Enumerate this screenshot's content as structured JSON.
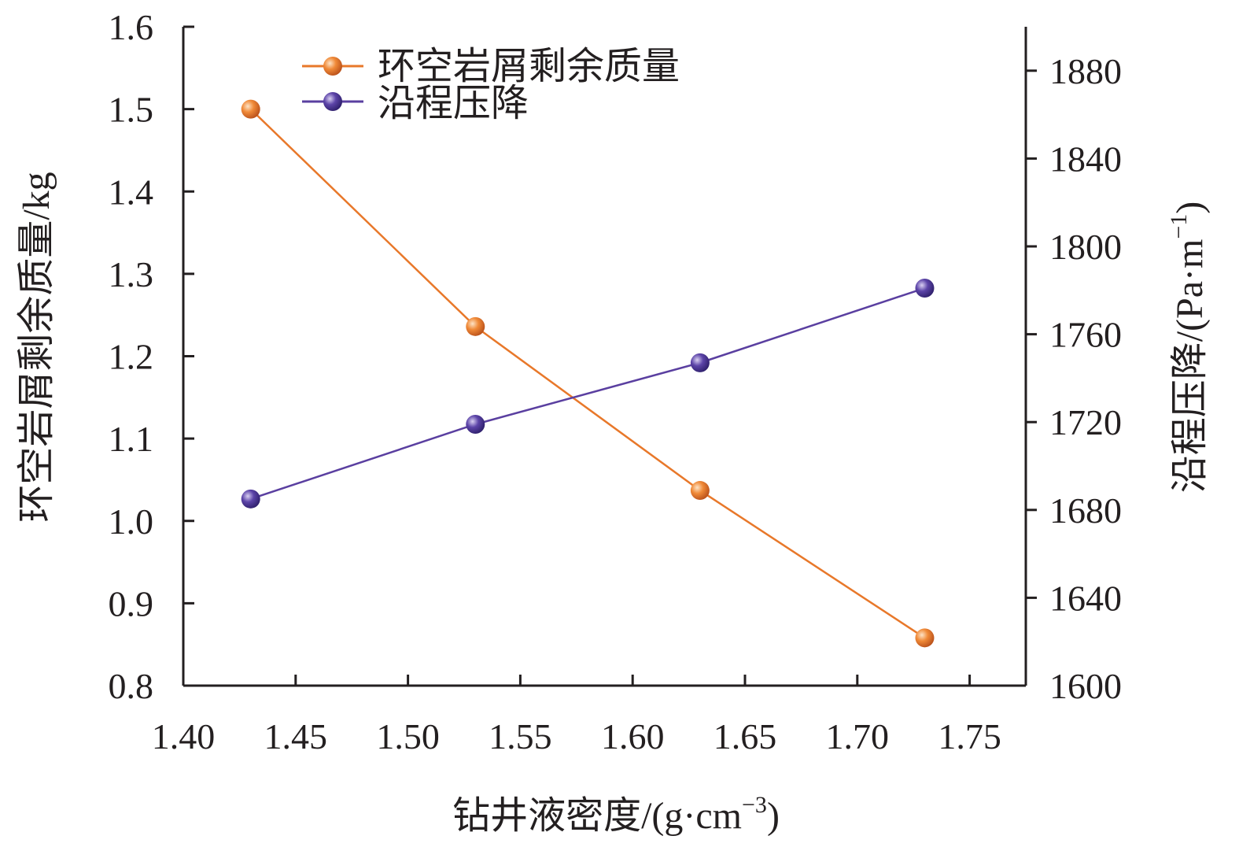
{
  "chart_data": {
    "type": "line",
    "xlabel": "钻井液密度/(g·cm",
    "xlabel_sup": "−3",
    "xlabel_end": ")",
    "ylabel_left": "环空岩屑剩余质量/kg",
    "ylabel_right": "沿程压降/(Pa·m",
    "ylabel_right_sup": "−1",
    "ylabel_right_end": ")",
    "xlim": [
      1.4,
      1.775
    ],
    "x_ticks": [
      "1.40",
      "1.45",
      "1.50",
      "1.55",
      "1.60",
      "1.65",
      "1.70",
      "1.75"
    ],
    "y_left_lim": [
      0.8,
      1.6
    ],
    "y_left_ticks": [
      "0.8",
      "0.9",
      "1.0",
      "1.1",
      "1.2",
      "1.3",
      "1.4",
      "1.5",
      "1.6"
    ],
    "y_right_lim": [
      1600,
      1900
    ],
    "y_right_ticks": [
      "1600",
      "1640",
      "1680",
      "1720",
      "1760",
      "1800",
      "1840",
      "1880"
    ],
    "legend_position": "top-left",
    "grid": false,
    "series": [
      {
        "name": "环空岩屑剩余质量",
        "axis": "left",
        "color": "#e8782a",
        "x": [
          1.43,
          1.53,
          1.63,
          1.73
        ],
        "y": [
          1.5,
          1.236,
          1.037,
          0.858
        ]
      },
      {
        "name": "沿程压降",
        "axis": "right",
        "color": "#5a3fa0",
        "x": [
          1.43,
          1.53,
          1.63,
          1.73
        ],
        "y": [
          1685,
          1719,
          1747,
          1781
        ]
      }
    ]
  }
}
